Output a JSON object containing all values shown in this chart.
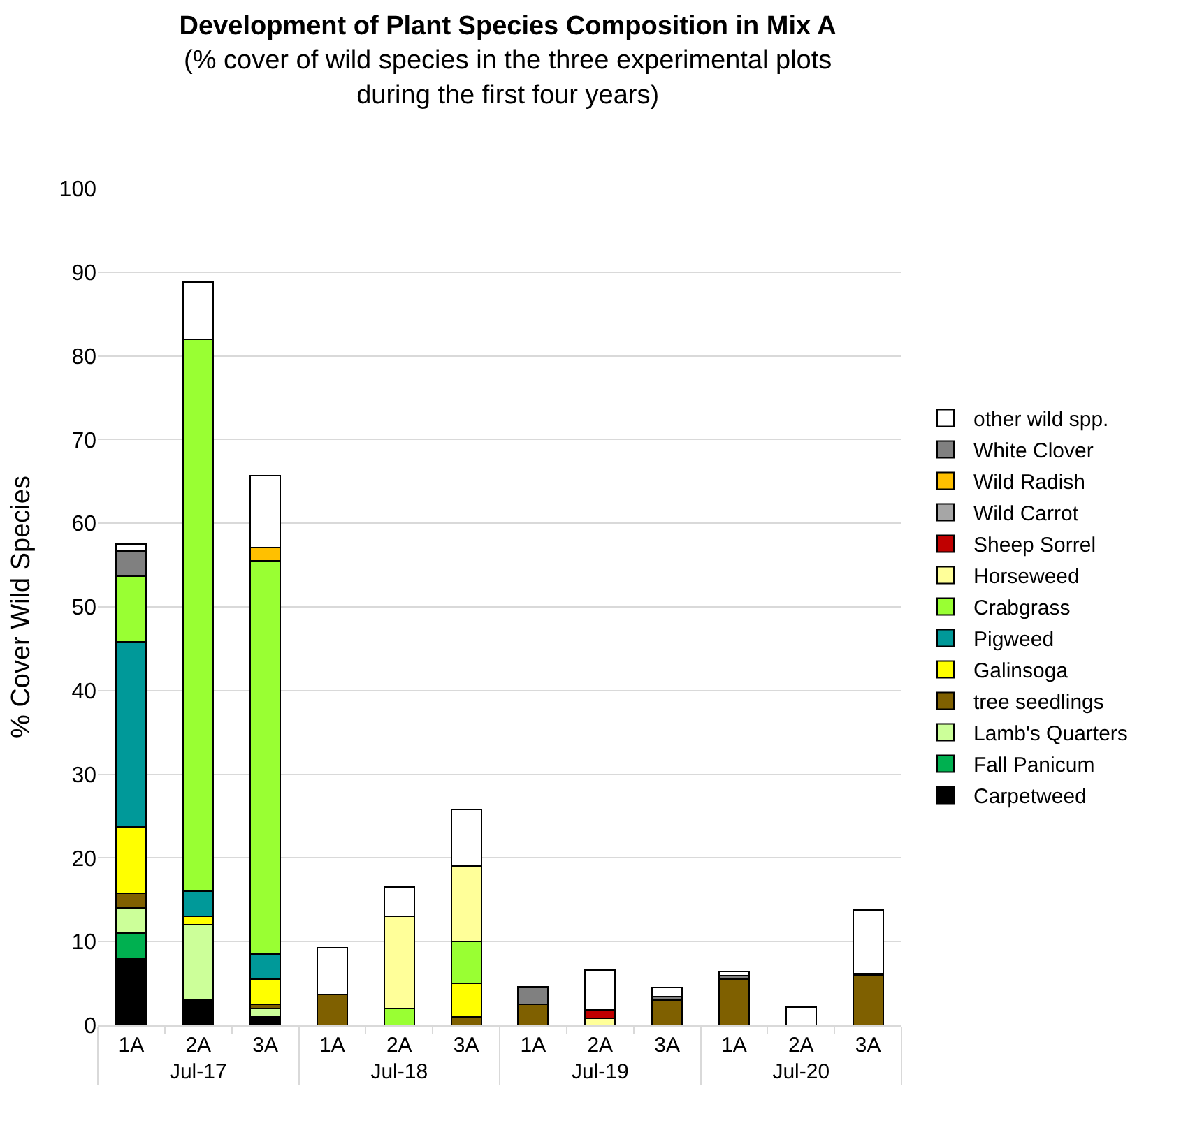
{
  "chart_data": {
    "type": "bar",
    "stacked": true,
    "title": "Development of Plant Species Composition in Mix A",
    "subtitle": "(% cover of wild species in the three experimental plots during the first four years)",
    "ylabel": "% Cover Wild Species",
    "categories": [
      "1A",
      "2A",
      "3A",
      "1A",
      "2A",
      "3A",
      "1A",
      "2A",
      "3A",
      "1A",
      "2A",
      "3A"
    ],
    "annotations": [
      "Jul-17",
      "Jul-18",
      "Jul-19",
      "Jul-20"
    ],
    "ylim": [
      0,
      100
    ],
    "yticks": [
      0,
      10,
      20,
      30,
      40,
      50,
      60,
      70,
      80,
      90,
      100
    ],
    "grid": "y",
    "legend": "right",
    "series": [
      {
        "name": "Carpetweed",
        "color": "#000000",
        "values": [
          8,
          3,
          1,
          null,
          null,
          null,
          null,
          null,
          null,
          null,
          null,
          null
        ]
      },
      {
        "name": "Fall Panicum",
        "color": "#00b050",
        "values": [
          3,
          null,
          null,
          null,
          null,
          null,
          null,
          null,
          null,
          null,
          null,
          null
        ]
      },
      {
        "name": "Lamb's Quarters",
        "color": "#ccff99",
        "values": [
          3,
          9,
          1,
          null,
          null,
          null,
          null,
          null,
          null,
          null,
          null,
          null
        ]
      },
      {
        "name": "tree seedlings",
        "color": "#7f6000",
        "values": [
          1.8,
          null,
          0.5,
          3.7,
          null,
          1,
          2.5,
          null,
          3,
          5.5,
          null,
          6
        ]
      },
      {
        "name": "Galinsoga",
        "color": "#ffff00",
        "values": [
          7.9,
          1,
          3,
          null,
          null,
          4,
          null,
          null,
          null,
          null,
          null,
          null
        ]
      },
      {
        "name": "Pigweed",
        "color": "#009999",
        "values": [
          22.1,
          3,
          3,
          null,
          null,
          null,
          null,
          null,
          null,
          null,
          null,
          null
        ]
      },
      {
        "name": "Crabgrass",
        "color": "#99ff33",
        "values": [
          7.9,
          66,
          47,
          null,
          2,
          5,
          null,
          null,
          null,
          null,
          null,
          null
        ]
      },
      {
        "name": "Horseweed",
        "color": "#ffff99",
        "values": [
          null,
          null,
          null,
          null,
          11,
          9,
          null,
          0.8,
          null,
          null,
          null,
          null
        ]
      },
      {
        "name": "Sheep Sorrel",
        "color": "#c00000",
        "values": [
          null,
          null,
          null,
          null,
          null,
          null,
          null,
          1,
          null,
          null,
          null,
          null
        ]
      },
      {
        "name": "Wild Carrot",
        "color": "#a6a6a6",
        "values": [
          null,
          null,
          null,
          null,
          null,
          null,
          null,
          null,
          null,
          null,
          null,
          null
        ]
      },
      {
        "name": "Wild Radish",
        "color": "#ffc000",
        "values": [
          null,
          null,
          1.6,
          null,
          null,
          null,
          null,
          null,
          null,
          null,
          null,
          null
        ]
      },
      {
        "name": "White Clover",
        "color": "#808080",
        "values": [
          3,
          null,
          null,
          null,
          null,
          null,
          2.1,
          null,
          0.4,
          0.4,
          null,
          0.2
        ]
      },
      {
        "name": "other wild spp.",
        "color": "#ffffff",
        "values": [
          0.8,
          6.8,
          8.6,
          5.6,
          3.5,
          6.8,
          null,
          4.8,
          1.1,
          0.5,
          2.2,
          7.6
        ]
      }
    ]
  }
}
